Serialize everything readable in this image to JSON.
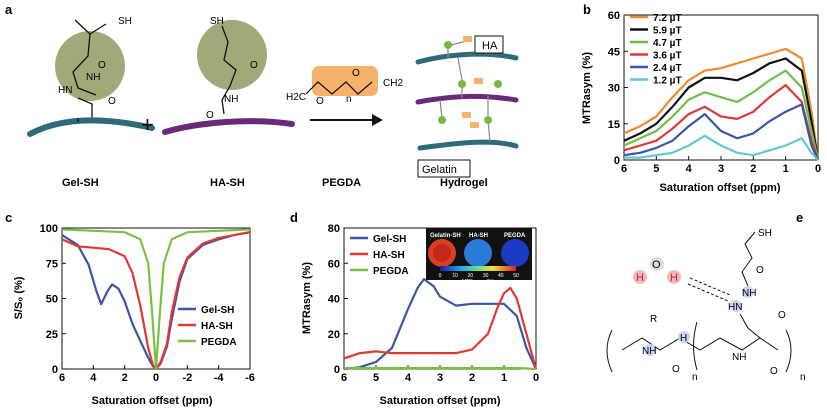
{
  "panels": {
    "a": "a",
    "b": "b",
    "c": "c",
    "d": "d",
    "e": "e"
  },
  "scheme": {
    "labels": [
      "Gel-SH",
      "HA-SH",
      "PEGDA",
      "Hydrogel"
    ],
    "plus": "+",
    "boxes": {
      "ha": "HA",
      "gelatin": "Gelatin"
    },
    "atoms": {
      "sh": "SH",
      "o": "O",
      "n": "n",
      "h2c": "H2C",
      "ch2": "CH2",
      "hn": "HN",
      "nh": "NH",
      "r": "R",
      "h": "H"
    }
  },
  "colors": {
    "teal": "#2e6b78",
    "purple": "#6b2a78",
    "olive": "#a3a878",
    "orange": "#f6b26b",
    "green": "#7ab648"
  },
  "chart_data": [
    {
      "panel": "b",
      "type": "line",
      "xlabel": "Saturation offset (ppm)",
      "ylabel": "MTRasym (%)",
      "xlim": [
        6,
        0
      ],
      "ylim": [
        0,
        60
      ],
      "xticks": [
        6,
        5,
        4,
        3,
        2,
        1,
        0
      ],
      "yticks": [
        0,
        15,
        30,
        45,
        60
      ],
      "legend_position": "top-left",
      "series": [
        {
          "name": "7.2 µT",
          "color": "#f08a30",
          "x": [
            6,
            5.5,
            5,
            4.5,
            4,
            3.5,
            3,
            2.5,
            2,
            1.5,
            1,
            0.5,
            0.2,
            0
          ],
          "y": [
            11,
            14,
            18,
            26,
            33,
            37,
            38,
            40,
            42,
            44,
            46,
            42,
            20,
            0
          ]
        },
        {
          "name": "5.9 µT",
          "color": "#111111",
          "x": [
            6,
            5.5,
            5,
            4.5,
            4,
            3.5,
            3,
            2.5,
            2,
            1.5,
            1,
            0.5,
            0.2,
            0
          ],
          "y": [
            8,
            11,
            15,
            22,
            30,
            34,
            34,
            33,
            36,
            40,
            42,
            37,
            16,
            0
          ]
        },
        {
          "name": "4.7 µT",
          "color": "#6cc04a",
          "x": [
            6,
            5.5,
            5,
            4.5,
            4,
            3.5,
            3,
            2.5,
            2,
            1.5,
            1,
            0.5,
            0.2,
            0
          ],
          "y": [
            6,
            9,
            12,
            18,
            25,
            28,
            26,
            24,
            28,
            33,
            37,
            30,
            12,
            0
          ]
        },
        {
          "name": "3.6 µT",
          "color": "#d93a3a",
          "x": [
            6,
            5.5,
            5,
            4.5,
            4,
            3.5,
            3,
            2.5,
            2,
            1.5,
            1,
            0.5,
            0.2,
            0
          ],
          "y": [
            4,
            6,
            8,
            13,
            19,
            22,
            18,
            17,
            20,
            26,
            31,
            24,
            8,
            0
          ]
        },
        {
          "name": "2.4 µT",
          "color": "#3b55a8",
          "x": [
            6,
            5.5,
            5,
            4.5,
            4,
            3.5,
            3,
            2.5,
            2,
            1.5,
            1,
            0.5,
            0.2,
            0
          ],
          "y": [
            2,
            3,
            5,
            8,
            14,
            19,
            12,
            9,
            11,
            16,
            20,
            23,
            6,
            0
          ]
        },
        {
          "name": "1.2 µT",
          "color": "#5fcad0",
          "x": [
            6,
            5.5,
            5,
            4.5,
            4,
            3.5,
            3,
            2.5,
            2,
            1.5,
            1,
            0.5,
            0.2,
            0
          ],
          "y": [
            1,
            1,
            2,
            3,
            6,
            10,
            6,
            3,
            2,
            4,
            6,
            9,
            3,
            0
          ]
        }
      ]
    },
    {
      "panel": "c",
      "type": "line",
      "xlabel": "Saturation offset (ppm)",
      "ylabel": "S/S₀ (%)",
      "xlim": [
        6,
        -6
      ],
      "ylim": [
        0,
        100
      ],
      "xticks": [
        6,
        4,
        2,
        0,
        -2,
        -4,
        -6
      ],
      "xtick_labels": [
        "6",
        "4",
        "2",
        "0",
        "-2",
        "-4",
        "-6"
      ],
      "yticks": [
        0,
        25,
        50,
        75,
        100
      ],
      "legend_position": "bottom-right",
      "series": [
        {
          "name": "Gel-SH",
          "color": "#3b55a8",
          "x": [
            6,
            5,
            4.3,
            3.8,
            3.5,
            3.1,
            2.8,
            2.4,
            2,
            1.5,
            1,
            0.5,
            0.2,
            0,
            -0.3,
            -0.7,
            -1,
            -1.5,
            -2,
            -3,
            -4,
            -5,
            -6
          ],
          "y": [
            95,
            88,
            74,
            55,
            46,
            55,
            60,
            57,
            48,
            32,
            20,
            8,
            2,
            0,
            4,
            16,
            35,
            62,
            78,
            88,
            92,
            95,
            97
          ]
        },
        {
          "name": "HA-SH",
          "color": "#e03a2f",
          "x": [
            6,
            5,
            4,
            3,
            2,
            1.5,
            1,
            0.5,
            0.2,
            0,
            -0.3,
            -0.7,
            -1,
            -1.5,
            -2,
            -3,
            -4,
            -5,
            -6
          ],
          "y": [
            92,
            87,
            86,
            85,
            80,
            68,
            45,
            15,
            3,
            0,
            5,
            18,
            40,
            65,
            79,
            89,
            93,
            95,
            97
          ]
        },
        {
          "name": "PEGDA",
          "color": "#7ac143",
          "x": [
            6,
            4,
            2,
            1,
            0.5,
            0.25,
            0,
            -0.25,
            -0.5,
            -1,
            -2,
            -4,
            -6
          ],
          "y": [
            99,
            98,
            97,
            92,
            75,
            40,
            0,
            40,
            75,
            92,
            97,
            98,
            99
          ]
        }
      ]
    },
    {
      "panel": "d",
      "type": "line",
      "xlabel": "Saturation offset (ppm)",
      "ylabel": "MTRasym (%)",
      "xlim": [
        6,
        0
      ],
      "ylim": [
        0,
        80
      ],
      "xticks": [
        6,
        5,
        4,
        3,
        2,
        1,
        0
      ],
      "yticks": [
        0,
        20,
        40,
        60,
        80
      ],
      "legend_position": "top-left",
      "series": [
        {
          "name": "Gel-SH",
          "color": "#3b55a8",
          "x": [
            6,
            5.5,
            5,
            4.5,
            4,
            3.7,
            3.5,
            3.2,
            3,
            2.5,
            2,
            1.5,
            1,
            0.6,
            0.3,
            0
          ],
          "y": [
            0,
            1,
            4,
            12,
            34,
            46,
            51,
            47,
            41,
            36,
            37,
            37,
            37,
            30,
            12,
            0
          ]
        },
        {
          "name": "HA-SH",
          "color": "#e03a2f",
          "x": [
            6,
            5.5,
            5,
            4.5,
            4,
            3.5,
            3,
            2.5,
            2,
            1.5,
            1.2,
            1,
            0.8,
            0.6,
            0.3,
            0
          ],
          "y": [
            6,
            9,
            10,
            9,
            9,
            9,
            9,
            9,
            11,
            20,
            35,
            43,
            46,
            40,
            20,
            0
          ]
        },
        {
          "name": "PEGDA",
          "color": "#7ac143",
          "x": [
            6,
            5,
            4,
            3,
            2,
            1,
            0.5,
            0
          ],
          "y": [
            0.5,
            0.5,
            0.5,
            0.5,
            0.5,
            0.5,
            0.5,
            0
          ]
        }
      ],
      "inset": {
        "labels": [
          "Gelatin-SH",
          "HA-SH",
          "PEGDA"
        ],
        "colorbar_ticks": [
          "0",
          "10",
          "20",
          "30",
          "40",
          "50"
        ],
        "colorbar_title": "MTRasym (%)"
      }
    }
  ]
}
